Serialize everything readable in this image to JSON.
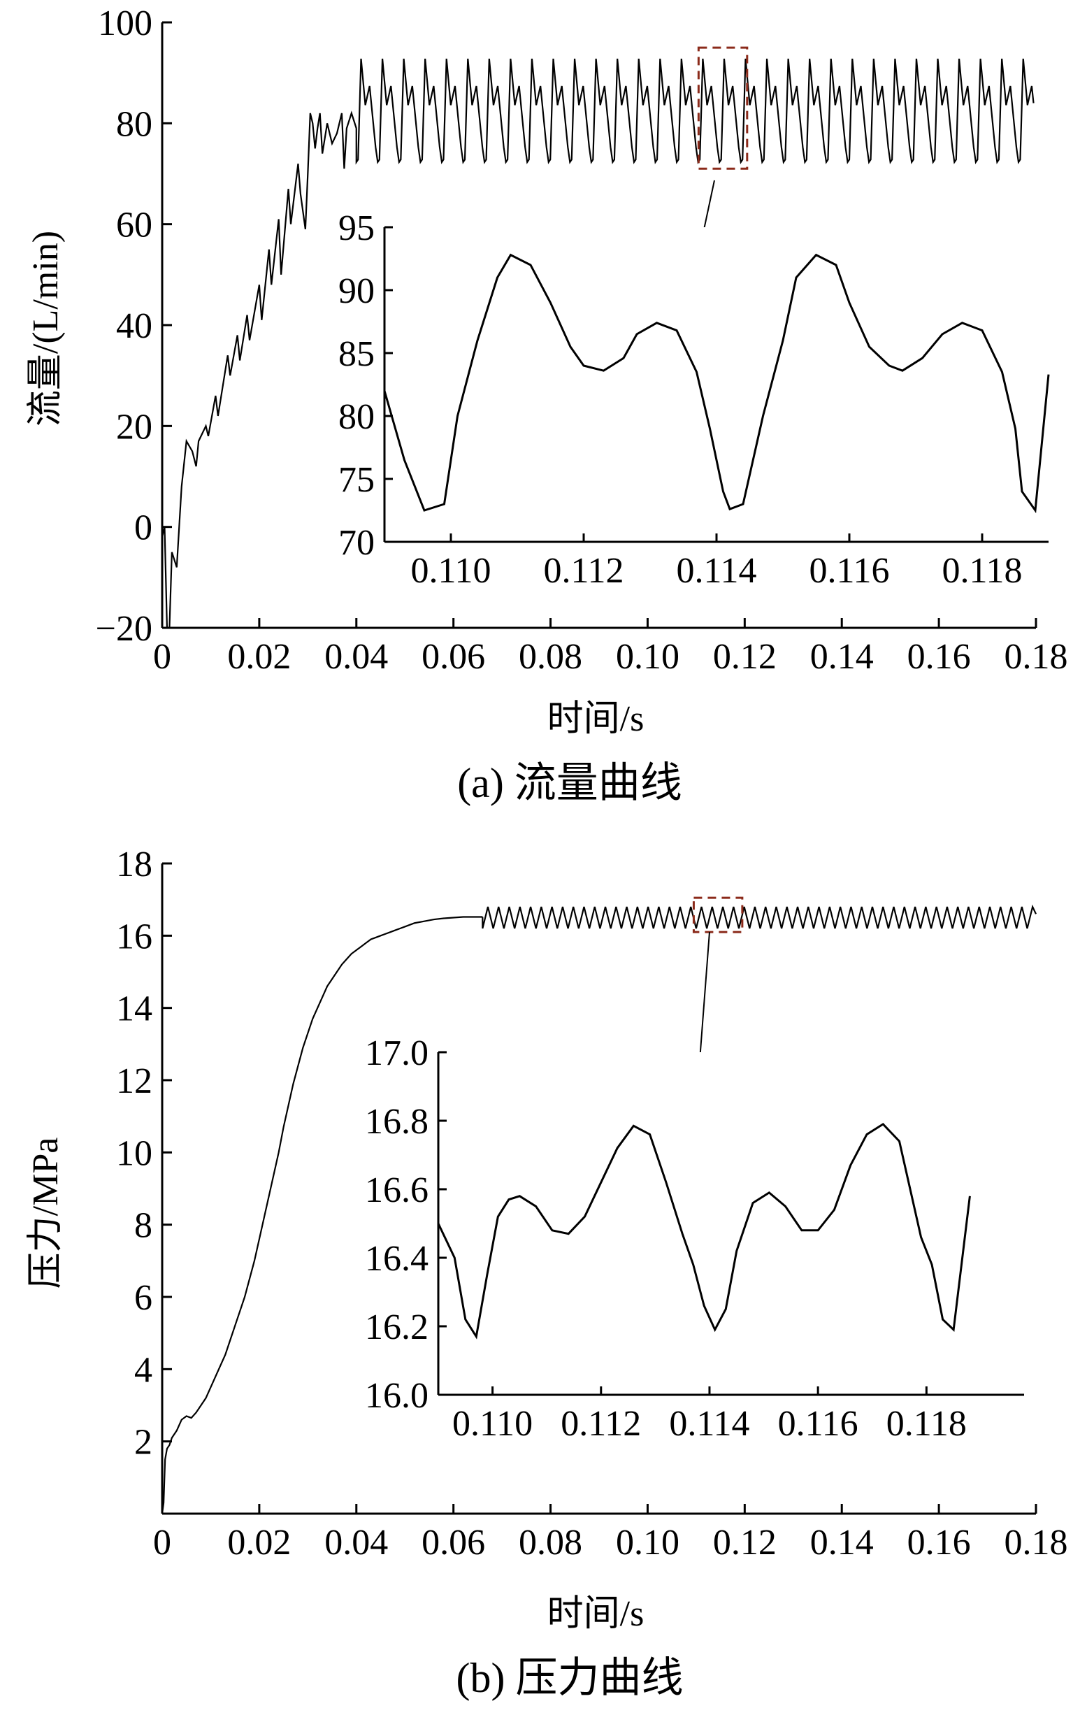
{
  "chart_data": [
    {
      "id": "a",
      "type": "line",
      "caption": "(a)  流量曲线",
      "xlabel": "时间/s",
      "ylabel": "流量/(L/min)",
      "xlim": [
        0,
        0.18
      ],
      "ylim": [
        -20,
        100
      ],
      "xticks": [
        0,
        0.02,
        0.04,
        0.06,
        0.08,
        0.1,
        0.12,
        0.14,
        0.16,
        0.18
      ],
      "xtick_labels": [
        "0",
        "0.02",
        "0.04",
        "0.06",
        "0.08",
        "0.10",
        "0.12",
        "0.14",
        "0.16",
        "0.18"
      ],
      "yticks": [
        -20,
        0,
        20,
        40,
        60,
        80,
        100
      ],
      "ytick_labels": [
        "−20",
        "0",
        "20",
        "40",
        "60",
        "80",
        "100"
      ],
      "series": [
        {
          "x": [
            0,
            0.0005,
            0.001,
            0.0015,
            0.002,
            0.003,
            0.0035,
            0.004,
            0.005,
            0.0062,
            0.007,
            0.0075,
            0.009,
            0.0095,
            0.011,
            0.0115,
            0.0135,
            0.014,
            0.0155,
            0.016,
            0.0175,
            0.018,
            0.02,
            0.0205,
            0.022,
            0.0225,
            0.024,
            0.0245,
            0.026,
            0.0265,
            0.028,
            0.0285,
            0.0295,
            0.03,
            0.0305,
            0.031,
            0.0315,
            0.032,
            0.0325,
            0.033,
            0.034,
            0.035,
            0.036,
            0.037,
            0.0375,
            0.038,
            0.039,
            0.04
          ],
          "y": [
            -2,
            0,
            -20,
            -20,
            -5,
            -8,
            0,
            8,
            17,
            15,
            12,
            17,
            20,
            18,
            26,
            22,
            34,
            30,
            38,
            33,
            42,
            37,
            48,
            41,
            55,
            48,
            61,
            50,
            67,
            60,
            72,
            66,
            59,
            70,
            82,
            80,
            75,
            79,
            82,
            74,
            80,
            76,
            78,
            82,
            71,
            79,
            82,
            79
          ]
        }
      ],
      "periodic_region": {
        "x_start": 0.04,
        "x_end": 0.1795,
        "period": 0.0044,
        "peak_high": 92.8,
        "peak_low": 87.4,
        "valley": 83.6,
        "trough": 72.3,
        "end_value": 84
      },
      "zoom_box": {
        "x": [
          0.1105,
          0.1205
        ],
        "y": [
          71,
          95
        ]
      },
      "inset": {
        "type": "line",
        "xlim": [
          0.109,
          0.119
        ],
        "ylim": [
          70,
          95
        ],
        "xticks": [
          0.11,
          0.112,
          0.114,
          0.116,
          0.118
        ],
        "xtick_labels": [
          "0.110",
          "0.112",
          "0.114",
          "0.116",
          "0.118"
        ],
        "yticks": [
          70,
          75,
          80,
          85,
          90,
          95
        ],
        "ytick_labels": [
          "70",
          "75",
          "80",
          "85",
          "90",
          "95"
        ],
        "x": [
          0.109,
          0.1093,
          0.1096,
          0.1099,
          0.1101,
          0.1104,
          0.1107,
          0.1109,
          0.1112,
          0.1115,
          0.1118,
          0.112,
          0.1123,
          0.1126,
          0.1128,
          0.1131,
          0.1134,
          0.1137,
          0.1139,
          0.1141,
          0.1142,
          0.1144,
          0.1147,
          0.115,
          0.1152,
          0.1155,
          0.1158,
          0.116,
          0.1163,
          0.1166,
          0.1168,
          0.1171,
          0.1174,
          0.1177,
          0.118,
          0.1183,
          0.1185,
          0.1186,
          0.1188,
          0.119
        ],
        "y": [
          82,
          76.5,
          72.5,
          73,
          80,
          86,
          91,
          92.8,
          92,
          89,
          85.5,
          84,
          83.6,
          84.6,
          86.5,
          87.4,
          86.8,
          83.5,
          79,
          74,
          72.6,
          73,
          80,
          86,
          91,
          92.8,
          92,
          89,
          85.5,
          84,
          83.6,
          84.6,
          86.5,
          87.4,
          86.8,
          83.5,
          79,
          74,
          72.5,
          83.3
        ]
      }
    },
    {
      "id": "b",
      "type": "line",
      "caption": "(b)  压力曲线",
      "xlabel": "时间/s",
      "ylabel": "压力/MPa",
      "xlim": [
        0,
        0.18
      ],
      "ylim": [
        0,
        18
      ],
      "xticks": [
        0,
        0.02,
        0.04,
        0.06,
        0.08,
        0.1,
        0.12,
        0.14,
        0.16,
        0.18
      ],
      "xtick_labels": [
        "0",
        "0.02",
        "0.04",
        "0.06",
        "0.08",
        "0.10",
        "0.12",
        "0.14",
        "0.16",
        "0.18"
      ],
      "yticks": [
        0,
        2,
        4,
        6,
        8,
        10,
        12,
        14,
        16,
        18
      ],
      "ytick_labels": [
        "",
        "2",
        "4",
        "6",
        "8",
        "10",
        "12",
        "14",
        "16",
        "18"
      ],
      "series": [
        {
          "x": [
            0,
            0.0003,
            0.0006,
            0.001,
            0.0015,
            0.002,
            0.003,
            0.004,
            0.005,
            0.006,
            0.007,
            0.008,
            0.009,
            0.01,
            0.011,
            0.012,
            0.013,
            0.014,
            0.015,
            0.016,
            0.017,
            0.018,
            0.019,
            0.02,
            0.021,
            0.022,
            0.023,
            0.024,
            0.025,
            0.026,
            0.027,
            0.028,
            0.029,
            0.03,
            0.031,
            0.032,
            0.033,
            0.034,
            0.035,
            0.036,
            0.037,
            0.038,
            0.039,
            0.04,
            0.041,
            0.042,
            0.043,
            0.044,
            0.045,
            0.046,
            0.047,
            0.048,
            0.049,
            0.05,
            0.052,
            0.054,
            0.056,
            0.058,
            0.06,
            0.062,
            0.064,
            0.066
          ],
          "y": [
            0,
            0.3,
            1.5,
            1.8,
            1.9,
            2.1,
            2.3,
            2.6,
            2.7,
            2.65,
            2.8,
            3.0,
            3.2,
            3.5,
            3.8,
            4.1,
            4.4,
            4.8,
            5.2,
            5.6,
            6.0,
            6.5,
            7.0,
            7.6,
            8.2,
            8.8,
            9.4,
            10.0,
            10.7,
            11.3,
            11.9,
            12.4,
            12.9,
            13.3,
            13.7,
            14.0,
            14.3,
            14.6,
            14.8,
            15.0,
            15.2,
            15.35,
            15.5,
            15.6,
            15.7,
            15.8,
            15.9,
            15.95,
            16.0,
            16.05,
            16.1,
            16.15,
            16.2,
            16.25,
            16.35,
            16.4,
            16.45,
            16.48,
            16.5,
            16.52,
            16.52,
            16.52
          ]
        }
      ],
      "periodic_region": {
        "x_start": 0.066,
        "x_end": 0.18,
        "period": 0.0022,
        "high": 16.8,
        "low": 16.2,
        "end_value": 16.6
      },
      "zoom_box": {
        "x": [
          0.1095,
          0.1195
        ],
        "y": [
          16.1,
          17.05
        ]
      },
      "inset": {
        "type": "line",
        "xlim": [
          0.109,
          0.1198
        ],
        "ylim": [
          16.0,
          17.0
        ],
        "xticks": [
          0.11,
          0.112,
          0.114,
          0.116,
          0.118
        ],
        "xtick_labels": [
          "0.110",
          "0.112",
          "0.114",
          "0.116",
          "0.118"
        ],
        "yticks": [
          16.0,
          16.2,
          16.4,
          16.6,
          16.8,
          17.0
        ],
        "ytick_labels": [
          "16.0",
          "16.2",
          "16.4",
          "16.6",
          "16.8",
          "17.0"
        ],
        "x": [
          0.109,
          0.1093,
          0.1095,
          0.1097,
          0.1099,
          0.1101,
          0.1103,
          0.1105,
          0.1108,
          0.1111,
          0.1114,
          0.1117,
          0.112,
          0.1123,
          0.1126,
          0.1129,
          0.1132,
          0.1135,
          0.1137,
          0.1139,
          0.1141,
          0.1143,
          0.1145,
          0.1148,
          0.1151,
          0.1154,
          0.1157,
          0.116,
          0.1163,
          0.1166,
          0.1169,
          0.1172,
          0.1175,
          0.1177,
          0.1179,
          0.1181,
          0.1183,
          0.1185,
          0.1188
        ],
        "y": [
          16.5,
          16.4,
          16.22,
          16.17,
          16.35,
          16.52,
          16.57,
          16.58,
          16.55,
          16.48,
          16.47,
          16.52,
          16.62,
          16.72,
          16.785,
          16.76,
          16.62,
          16.47,
          16.38,
          16.26,
          16.19,
          16.25,
          16.42,
          16.56,
          16.59,
          16.55,
          16.48,
          16.48,
          16.54,
          16.67,
          16.76,
          16.79,
          16.74,
          16.6,
          16.46,
          16.38,
          16.22,
          16.19,
          16.58
        ]
      }
    }
  ]
}
